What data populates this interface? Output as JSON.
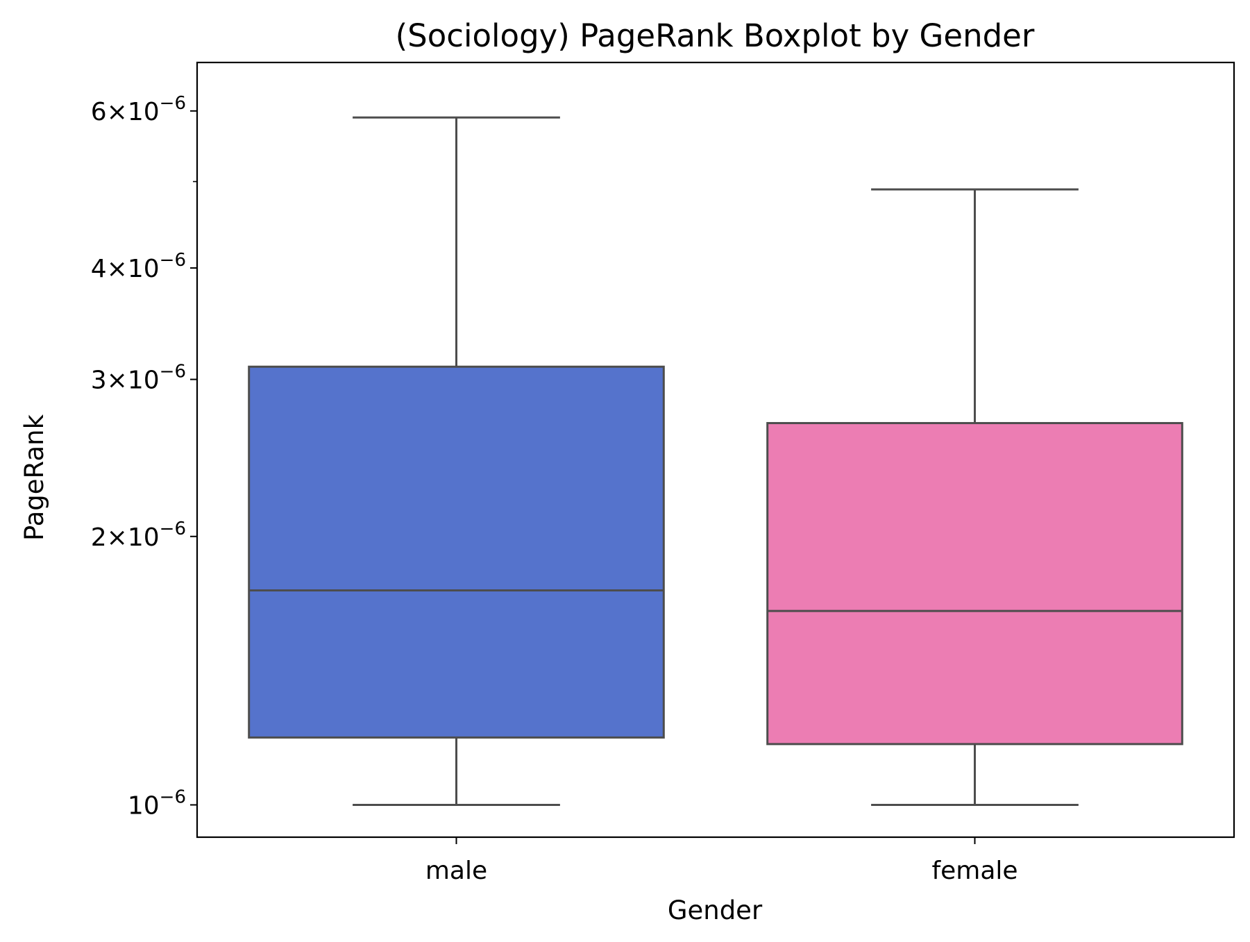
{
  "chart_data": {
    "type": "boxplot",
    "title": "(Sociology) PageRank Boxplot by Gender",
    "xlabel": "Gender",
    "ylabel": "PageRank",
    "yscale": "log",
    "ylim": [
      9.2e-07,
      6.8e-06
    ],
    "grid": false,
    "categories": [
      "male",
      "female"
    ],
    "boxes": [
      {
        "category": "male",
        "color": "#5573CC",
        "whisker_low": 1e-06,
        "q1": 1.19e-06,
        "median": 1.74e-06,
        "q3": 3.1e-06,
        "whisker_high": 5.9e-06
      },
      {
        "category": "female",
        "color": "#EC7DB3",
        "whisker_low": 1e-06,
        "q1": 1.17e-06,
        "median": 1.65e-06,
        "q3": 2.68e-06,
        "whisker_high": 4.9e-06
      }
    ],
    "yticks_major": [
      {
        "value": 1e-06,
        "mantissa": "",
        "exponent": "−6"
      },
      {
        "value": 2e-06,
        "mantissa": "2",
        "exponent": "−6"
      },
      {
        "value": 3e-06,
        "mantissa": "3",
        "exponent": "−6"
      },
      {
        "value": 4e-06,
        "mantissa": "4",
        "exponent": "−6"
      },
      {
        "value": 6e-06,
        "mantissa": "6",
        "exponent": "−6"
      }
    ],
    "yticks_minor": [
      5e-06
    ],
    "tick_base": "10",
    "times_sign": "×",
    "line_color": "#4d4d4d"
  }
}
